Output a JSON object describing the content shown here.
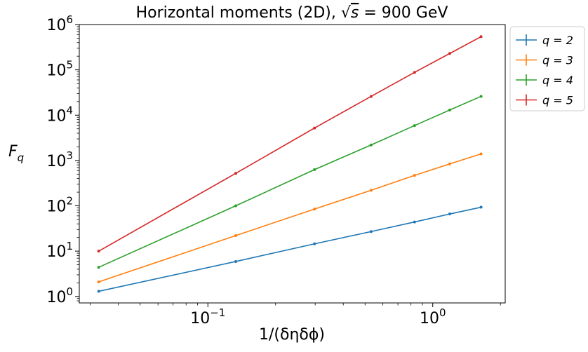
{
  "chart_data": {
    "type": "line",
    "title_pre": "Horizontal moments (2D), ",
    "title_post": " = 900 GeV",
    "title_sqrt_arg": "s",
    "xlabel": "1/(δηδϕ)",
    "ylabel_main": "F",
    "ylabel_sub": "q",
    "x_scale": "log",
    "y_scale": "log",
    "xlim": [
      0.0268,
      2.1
    ],
    "ylim": [
      0.72,
      1000000
    ],
    "x_ticks": [
      {
        "value": 0.1,
        "base": "10",
        "exp": "−1"
      },
      {
        "value": 1,
        "base": "10",
        "exp": "0"
      }
    ],
    "y_ticks": [
      {
        "value": 1,
        "base": "10",
        "exp": "0"
      },
      {
        "value": 10,
        "base": "10",
        "exp": "1"
      },
      {
        "value": 100,
        "base": "10",
        "exp": "2"
      },
      {
        "value": 1000,
        "base": "10",
        "exp": "3"
      },
      {
        "value": 10000,
        "base": "10",
        "exp": "4"
      },
      {
        "value": 100000,
        "base": "10",
        "exp": "5"
      },
      {
        "value": 1000000,
        "base": "10",
        "exp": "6"
      }
    ],
    "grid": false,
    "legend_position": "outside-top-right",
    "x": [
      0.0327,
      0.133,
      0.298,
      0.532,
      0.83,
      1.19,
      1.64
    ],
    "series": [
      {
        "name": "q = 2",
        "color": "#1f77b4",
        "values": [
          1.3,
          5.9,
          14.5,
          27,
          44,
          66,
          93
        ]
      },
      {
        "name": "q = 3",
        "color": "#ff7f0e",
        "values": [
          2.1,
          22,
          85,
          220,
          470,
          840,
          1400
        ]
      },
      {
        "name": "q = 4",
        "color": "#2ca02c",
        "values": [
          4.4,
          100,
          630,
          2200,
          5900,
          13000,
          26000
        ]
      },
      {
        "name": "q = 5",
        "color": "#d62728",
        "values": [
          10,
          520,
          5200,
          26000,
          88000,
          230000,
          540000
        ]
      }
    ]
  }
}
